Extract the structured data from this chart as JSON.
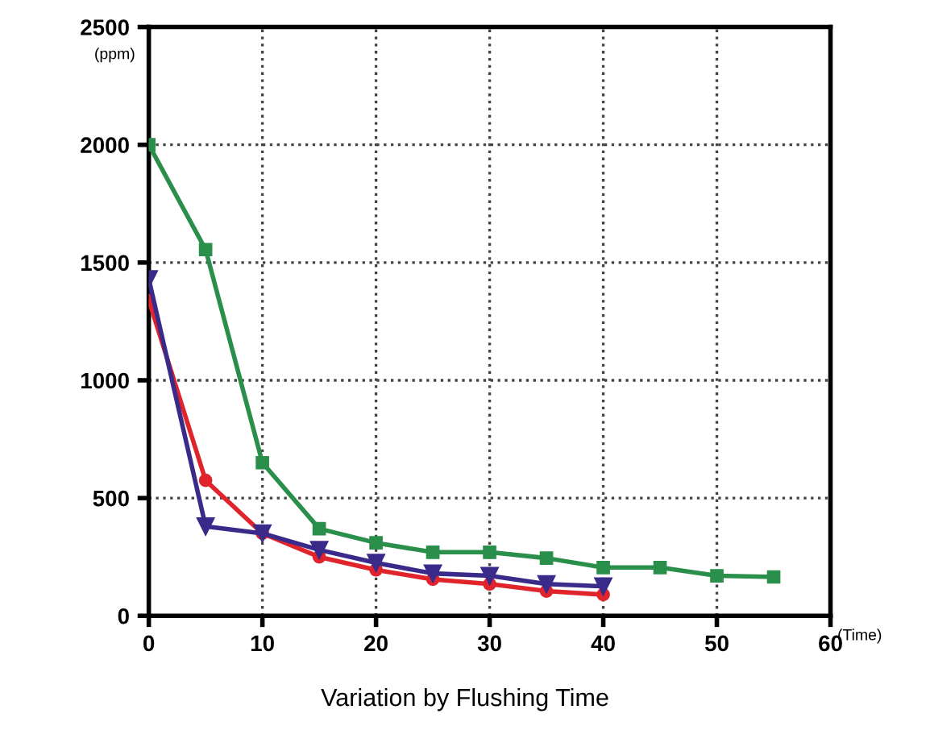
{
  "chart_data": {
    "type": "line",
    "title": "Variation by Flushing Time",
    "xlabel": "(Time)",
    "ylabel": "(ppm)",
    "xlim": [
      0,
      60
    ],
    "ylim": [
      0,
      2500
    ],
    "xticks": [
      0,
      10,
      20,
      30,
      40,
      50,
      60
    ],
    "yticks": [
      0,
      500,
      1000,
      1500,
      2000,
      2500
    ],
    "grid": true,
    "legend": false,
    "series": [
      {
        "color": "#2a8f4a",
        "marker": "square",
        "x": [
          0,
          5,
          10,
          15,
          20,
          25,
          30,
          35,
          40,
          45,
          50,
          55
        ],
        "values": [
          2000,
          1555,
          650,
          370,
          310,
          270,
          270,
          245,
          205,
          205,
          170,
          165
        ]
      },
      {
        "color": "#3a2a8a",
        "marker": "triangle",
        "x": [
          0,
          5,
          10,
          15,
          20,
          25,
          30,
          35,
          40
        ],
        "values": [
          1430,
          380,
          350,
          280,
          225,
          180,
          170,
          135,
          125
        ]
      },
      {
        "color": "#e0242c",
        "marker": "circle",
        "x": [
          0,
          5,
          10,
          15,
          20,
          25,
          30,
          35,
          40
        ],
        "values": [
          1340,
          575,
          350,
          250,
          195,
          155,
          135,
          105,
          90
        ]
      }
    ]
  }
}
